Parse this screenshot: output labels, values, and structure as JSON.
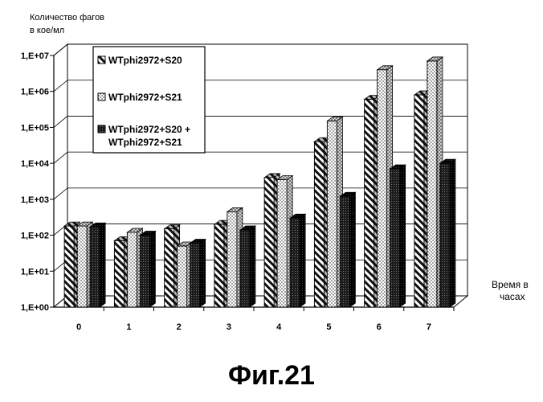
{
  "chart_data": {
    "type": "bar",
    "ylabel_lines": [
      "Количество фагов",
      "в кое/мл"
    ],
    "xlabel_lines": [
      "Время в",
      "часах"
    ],
    "y_scale": "log",
    "ylim": [
      1,
      10000000
    ],
    "y_tick_labels": [
      "1,E+00",
      "1,E+01",
      "1,E+02",
      "1,E+03",
      "1,E+04",
      "1,E+05",
      "1,E+06",
      "1,E+07"
    ],
    "categories": [
      "0",
      "1",
      "2",
      "3",
      "4",
      "5",
      "6",
      "7"
    ],
    "grid": true,
    "legend_position": "top-left",
    "series": [
      {
        "name": "WTphi2972+S20",
        "pattern": "hatch",
        "values": [
          180,
          70,
          150,
          200,
          4000,
          40000,
          600000,
          800000
        ]
      },
      {
        "name": "WTphi2972+S21",
        "pattern": "dots",
        "values": [
          180,
          120,
          50,
          450,
          3500,
          150000,
          4000000,
          7000000
        ]
      },
      {
        "name_lines": [
          "WTphi2972+S20 +",
          "WTphi2972+S21"
        ],
        "pattern": "dark",
        "values": [
          170,
          100,
          60,
          140,
          300,
          1200,
          7000,
          10000
        ]
      }
    ]
  },
  "caption": "Фиг.21"
}
